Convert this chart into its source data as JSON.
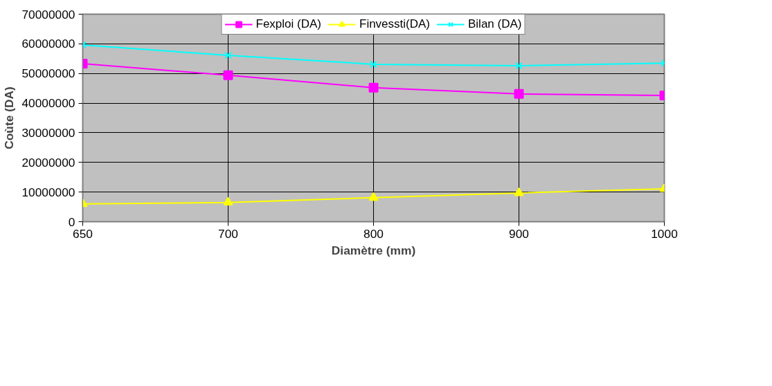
{
  "chart_data": {
    "type": "line",
    "xlabel": "Diamètre (mm)",
    "ylabel": "Coùte (DA)",
    "categories": [
      "650",
      "700",
      "800",
      "900",
      "1000"
    ],
    "series": [
      {
        "name": "Fexploi (DA)",
        "color": "#ff00ff",
        "marker": "square",
        "values": [
          53300000,
          49400000,
          45200000,
          43100000,
          42600000
        ]
      },
      {
        "name": "Finvessti(DA)",
        "color": "#ffff00",
        "marker": "triangle",
        "values": [
          6000000,
          6500000,
          8100000,
          9700000,
          11100000
        ]
      },
      {
        "name": "Bilan (DA)",
        "color": "#00ffff",
        "marker": "cross",
        "values": [
          59600000,
          56100000,
          53100000,
          52600000,
          53500000
        ]
      }
    ],
    "ylim": [
      0,
      70000000
    ],
    "yticks": [
      0,
      10000000,
      20000000,
      30000000,
      40000000,
      50000000,
      60000000,
      70000000
    ],
    "grid": true,
    "legend": "top",
    "line_style": "solid"
  }
}
